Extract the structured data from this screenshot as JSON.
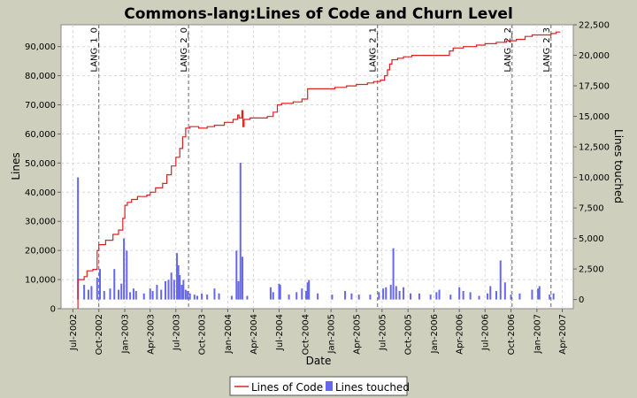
{
  "chart_data": {
    "type": "line+bar",
    "title": "Commons-lang:Lines of Code and Churn Level",
    "xlabel": "Date",
    "ylabel_left": "Lines",
    "ylabel_right": "Lines touched",
    "xlim": [
      "2002-05-20",
      "2007-05-10"
    ],
    "ylim_left": [
      0,
      97500
    ],
    "ylim_right": [
      -750,
      22500
    ],
    "grid": true,
    "legend_position": "bottom",
    "x_tick_labels": [
      "Jul-2002",
      "Oct-2002",
      "Jan-2003",
      "Apr-2003",
      "Jul-2003",
      "Oct-2003",
      "Jan-2004",
      "Apr-2004",
      "Jul-2004",
      "Oct-2004",
      "Jan-2005",
      "Apr-2005",
      "Jul-2005",
      "Oct-2005",
      "Jan-2006",
      "Apr-2006",
      "Jul-2006",
      "Oct-2006",
      "Jan-2007",
      "Apr-2007"
    ],
    "y_left_ticks": [
      "0",
      "10,000",
      "20,000",
      "30,000",
      "40,000",
      "50,000",
      "60,000",
      "70,000",
      "80,000",
      "90,000"
    ],
    "y_right_ticks": [
      "0",
      "2,500",
      "5,000",
      "7,500",
      "10,000",
      "12,500",
      "15,000",
      "17,500",
      "20,000",
      "22,500"
    ],
    "series": [
      {
        "name": "Lines of Code",
        "color": "#dd2222",
        "axis": "left",
        "style": "step",
        "points": [
          [
            "2002-07-19",
            0
          ],
          [
            "2002-07-19",
            10000
          ],
          [
            "2002-08-10",
            11000
          ],
          [
            "2002-08-20",
            13000
          ],
          [
            "2002-09-10",
            13500
          ],
          [
            "2002-09-25",
            20000
          ],
          [
            "2002-10-01",
            22000
          ],
          [
            "2002-10-25",
            23500
          ],
          [
            "2002-11-20",
            25500
          ],
          [
            "2002-12-10",
            27000
          ],
          [
            "2002-12-25",
            31000
          ],
          [
            "2003-01-01",
            35500
          ],
          [
            "2003-01-10",
            36500
          ],
          [
            "2003-01-25",
            37500
          ],
          [
            "2003-02-15",
            38500
          ],
          [
            "2003-03-20",
            39000
          ],
          [
            "2003-04-01",
            40000
          ],
          [
            "2003-04-20",
            41500
          ],
          [
            "2003-05-15",
            43000
          ],
          [
            "2003-05-30",
            46000
          ],
          [
            "2003-06-15",
            49000
          ],
          [
            "2003-07-01",
            52000
          ],
          [
            "2003-07-15",
            55000
          ],
          [
            "2003-07-25",
            59000
          ],
          [
            "2003-08-05",
            62000
          ],
          [
            "2003-08-20",
            62500
          ],
          [
            "2003-09-20",
            62000
          ],
          [
            "2003-10-20",
            62500
          ],
          [
            "2003-11-15",
            63000
          ],
          [
            "2003-12-20",
            64000
          ],
          [
            "2004-01-20",
            65000
          ],
          [
            "2004-02-05",
            66500
          ],
          [
            "2004-02-10",
            65500
          ],
          [
            "2004-02-20",
            68000
          ],
          [
            "2004-02-24",
            62500
          ],
          [
            "2004-02-28",
            65000
          ],
          [
            "2004-03-20",
            65500
          ],
          [
            "2004-05-20",
            66000
          ],
          [
            "2004-06-10",
            67500
          ],
          [
            "2004-06-25",
            70000
          ],
          [
            "2004-07-10",
            70500
          ],
          [
            "2004-08-20",
            71000
          ],
          [
            "2004-09-20",
            72000
          ],
          [
            "2004-10-10",
            75500
          ],
          [
            "2004-12-01",
            75500
          ],
          [
            "2005-01-15",
            76000
          ],
          [
            "2005-02-25",
            76500
          ],
          [
            "2005-04-01",
            77000
          ],
          [
            "2005-05-10",
            77500
          ],
          [
            "2005-06-01",
            78000
          ],
          [
            "2005-06-25",
            78500
          ],
          [
            "2005-07-10",
            80000
          ],
          [
            "2005-07-20",
            82000
          ],
          [
            "2005-07-28",
            84000
          ],
          [
            "2005-08-05",
            85500
          ],
          [
            "2005-08-25",
            86000
          ],
          [
            "2005-09-15",
            86500
          ],
          [
            "2005-10-15",
            87000
          ],
          [
            "2006-01-01",
            87000
          ],
          [
            "2006-02-15",
            87000
          ],
          [
            "2006-02-25",
            88500
          ],
          [
            "2006-03-10",
            89500
          ],
          [
            "2006-04-15",
            90000
          ],
          [
            "2006-06-01",
            90500
          ],
          [
            "2006-07-01",
            91000
          ],
          [
            "2006-08-10",
            91500
          ],
          [
            "2006-09-15",
            92000
          ],
          [
            "2006-10-20",
            92500
          ],
          [
            "2006-11-20",
            93500
          ],
          [
            "2006-12-15",
            94000
          ],
          [
            "2007-02-20",
            94500
          ],
          [
            "2007-03-10",
            95000
          ],
          [
            "2007-03-25",
            95000
          ]
        ]
      },
      {
        "name": "Lines touched",
        "color": "#6666ee",
        "axis": "right",
        "style": "bar",
        "points": [
          [
            "2002-07-19",
            10000
          ],
          [
            "2002-08-10",
            1200
          ],
          [
            "2002-08-25",
            800
          ],
          [
            "2002-09-05",
            1100
          ],
          [
            "2002-09-25",
            1800
          ],
          [
            "2002-10-05",
            2500
          ],
          [
            "2002-10-20",
            700
          ],
          [
            "2002-11-10",
            900
          ],
          [
            "2002-11-25",
            2500
          ],
          [
            "2002-12-10",
            800
          ],
          [
            "2002-12-20",
            1300
          ],
          [
            "2002-12-29",
            5000
          ],
          [
            "2003-01-08",
            4000
          ],
          [
            "2003-01-20",
            600
          ],
          [
            "2003-02-01",
            900
          ],
          [
            "2003-02-10",
            700
          ],
          [
            "2003-03-10",
            500
          ],
          [
            "2003-04-01",
            900
          ],
          [
            "2003-04-10",
            700
          ],
          [
            "2003-04-25",
            1200
          ],
          [
            "2003-05-10",
            800
          ],
          [
            "2003-05-25",
            1500
          ],
          [
            "2003-06-05",
            1600
          ],
          [
            "2003-06-15",
            2200
          ],
          [
            "2003-06-25",
            1600
          ],
          [
            "2003-07-05",
            3800
          ],
          [
            "2003-07-10",
            2800
          ],
          [
            "2003-07-15",
            2000
          ],
          [
            "2003-07-22",
            1200
          ],
          [
            "2003-07-28",
            1600
          ],
          [
            "2003-08-05",
            800
          ],
          [
            "2003-08-12",
            700
          ],
          [
            "2003-08-20",
            500
          ],
          [
            "2003-09-05",
            400
          ],
          [
            "2003-09-15",
            300
          ],
          [
            "2003-10-01",
            500
          ],
          [
            "2003-10-20",
            400
          ],
          [
            "2003-11-15",
            900
          ],
          [
            "2003-12-01",
            500
          ],
          [
            "2004-01-15",
            300
          ],
          [
            "2004-02-01",
            4000
          ],
          [
            "2004-02-08",
            1500
          ],
          [
            "2004-02-15",
            11200
          ],
          [
            "2004-02-22",
            3500
          ],
          [
            "2004-03-10",
            300
          ],
          [
            "2004-06-01",
            1000
          ],
          [
            "2004-06-10",
            600
          ],
          [
            "2004-07-01",
            1300
          ],
          [
            "2004-07-05",
            1200
          ],
          [
            "2004-08-05",
            400
          ],
          [
            "2004-09-01",
            600
          ],
          [
            "2004-09-20",
            900
          ],
          [
            "2004-10-05",
            700
          ],
          [
            "2004-10-10",
            1400
          ],
          [
            "2004-10-15",
            1600
          ],
          [
            "2004-11-15",
            500
          ],
          [
            "2005-01-05",
            400
          ],
          [
            "2005-02-20",
            700
          ],
          [
            "2005-03-15",
            500
          ],
          [
            "2005-04-10",
            400
          ],
          [
            "2005-05-20",
            400
          ],
          [
            "2005-06-20",
            600
          ],
          [
            "2005-07-05",
            900
          ],
          [
            "2005-07-15",
            1000
          ],
          [
            "2005-08-01",
            1200
          ],
          [
            "2005-08-10",
            4200
          ],
          [
            "2005-08-20",
            1100
          ],
          [
            "2005-09-01",
            700
          ],
          [
            "2005-09-15",
            1000
          ],
          [
            "2005-10-10",
            500
          ],
          [
            "2005-11-10",
            500
          ],
          [
            "2005-12-20",
            400
          ],
          [
            "2006-01-10",
            600
          ],
          [
            "2006-01-20",
            800
          ],
          [
            "2006-03-01",
            400
          ],
          [
            "2006-04-01",
            1000
          ],
          [
            "2006-04-15",
            700
          ],
          [
            "2006-05-10",
            600
          ],
          [
            "2006-06-10",
            300
          ],
          [
            "2006-07-10",
            500
          ],
          [
            "2006-07-20",
            1100
          ],
          [
            "2006-08-10",
            700
          ],
          [
            "2006-08-25",
            3200
          ],
          [
            "2006-09-10",
            1400
          ],
          [
            "2006-10-01",
            400
          ],
          [
            "2006-11-01",
            500
          ],
          [
            "2006-12-15",
            800
          ],
          [
            "2007-01-05",
            900
          ],
          [
            "2007-01-10",
            1100
          ],
          [
            "2007-02-15",
            400
          ],
          [
            "2007-03-01",
            500
          ]
        ]
      }
    ],
    "release_markers": [
      {
        "label": "LANG_1_0",
        "date": "2002-10-01"
      },
      {
        "label": "LANG_2_0",
        "date": "2003-08-15"
      },
      {
        "label": "LANG_2_1",
        "date": "2005-06-15"
      },
      {
        "label": "LANG_2_2",
        "date": "2006-10-05"
      },
      {
        "label": "LANG_2_3",
        "date": "2007-02-20"
      }
    ]
  }
}
